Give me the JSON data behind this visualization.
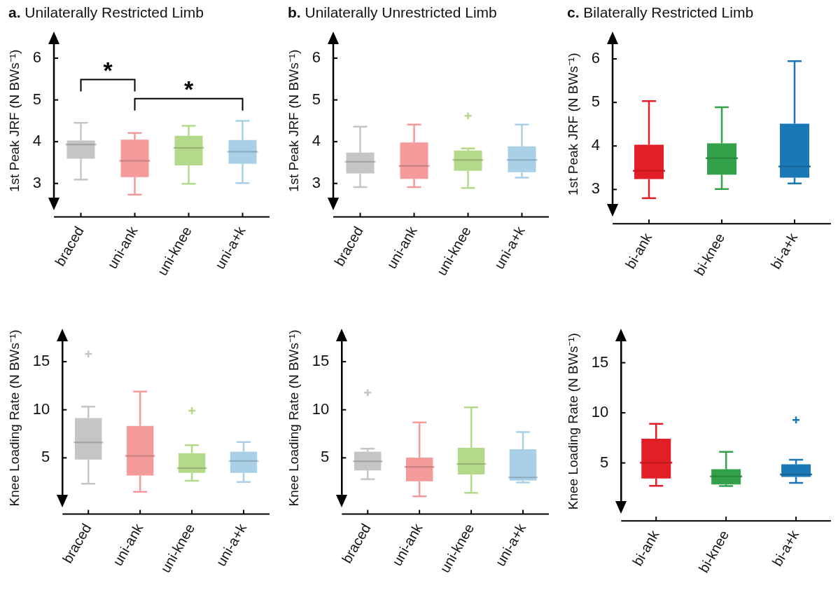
{
  "chart_data": [
    {
      "type": "box",
      "title": "a. Unilaterally Restricted Limb",
      "ylabel": "1st Peak JRF (N BWs⁻¹)",
      "categories": [
        "braced",
        "uni-ank",
        "uni-knee",
        "uni-a+k"
      ],
      "colors": [
        "#c4c5c7",
        "#f49a9a",
        "#b5d98a",
        "#a9d0e6"
      ],
      "ylim": [
        2.6,
        6.4
      ],
      "yticks": [
        3,
        4,
        5,
        6
      ],
      "boxes": [
        {
          "low": 3.09,
          "q1": 3.59,
          "median": 3.93,
          "q3": 4.03,
          "high": 4.45
        },
        {
          "low": 2.73,
          "q1": 3.15,
          "median": 3.54,
          "q3": 4.05,
          "high": 4.21
        },
        {
          "low": 2.99,
          "q1": 3.43,
          "median": 3.85,
          "q3": 4.14,
          "high": 4.38
        },
        {
          "low": 3.01,
          "q1": 3.47,
          "median": 3.76,
          "q3": 4.04,
          "high": 4.5
        }
      ],
      "annotations": [
        "*",
        "*"
      ]
    },
    {
      "type": "box",
      "title": "b. Unilaterally Unrestricted Limb",
      "ylabel": "1st Peak JRF (N BWs⁻¹)",
      "categories": [
        "braced",
        "uni-ank",
        "uni-knee",
        "uni-a+k"
      ],
      "colors": [
        "#c4c5c7",
        "#f49a9a",
        "#b5d98a",
        "#a9d0e6"
      ],
      "ylim": [
        2.6,
        6.4
      ],
      "yticks": [
        3,
        4,
        5,
        6
      ],
      "boxes": [
        {
          "low": 2.91,
          "q1": 3.24,
          "median": 3.52,
          "q3": 3.74,
          "high": 4.36
        },
        {
          "low": 2.91,
          "q1": 3.11,
          "median": 3.42,
          "q3": 3.98,
          "high": 4.41
        },
        {
          "low": 2.89,
          "q1": 3.3,
          "median": 3.56,
          "q3": 3.79,
          "high": 3.84,
          "outliers": [
            4.62
          ]
        },
        {
          "low": 3.14,
          "q1": 3.27,
          "median": 3.56,
          "q3": 3.89,
          "high": 4.41
        }
      ]
    },
    {
      "type": "box",
      "title": "c. Bilaterally Restricted Limb",
      "ylabel": "1st Peak JRF (N BWs⁻¹)",
      "categories": [
        "bi-ank",
        "bi-knee",
        "bi-a+k"
      ],
      "colors": [
        "#e31e26",
        "#33a14a",
        "#1b78b6"
      ],
      "ylim": [
        2.6,
        6.4
      ],
      "yticks": [
        3,
        4,
        5,
        6
      ],
      "boxes": [
        {
          "low": 2.8,
          "q1": 3.24,
          "median": 3.43,
          "q3": 4.03,
          "high": 5.03
        },
        {
          "low": 3.01,
          "q1": 3.34,
          "median": 3.72,
          "q3": 4.06,
          "high": 4.89
        },
        {
          "low": 3.14,
          "q1": 3.27,
          "median": 3.53,
          "q3": 4.51,
          "high": 5.95
        }
      ]
    },
    {
      "type": "box",
      "ylabel": "Knee Loading Rate (N BWs⁻¹)",
      "categories": [
        "braced",
        "uni-ank",
        "uni-knee",
        "uni-a+k"
      ],
      "colors": [
        "#c4c5c7",
        "#f49a9a",
        "#b5d98a",
        "#a9d0e6"
      ],
      "ylim": [
        0.9,
        17.4
      ],
      "yticks": [
        5,
        10,
        15
      ],
      "boxes": [
        {
          "low": 2.3,
          "q1": 4.83,
          "median": 6.61,
          "q3": 9.15,
          "high": 10.33,
          "outliers": [
            15.81
          ]
        },
        {
          "low": 1.47,
          "q1": 3.16,
          "median": 5.21,
          "q3": 8.32,
          "high": 11.9
        },
        {
          "low": 2.62,
          "q1": 3.44,
          "median": 3.93,
          "q3": 5.47,
          "high": 6.31,
          "outliers": [
            9.9
          ]
        },
        {
          "low": 2.49,
          "q1": 3.44,
          "median": 4.68,
          "q3": 5.64,
          "high": 6.65
        }
      ]
    },
    {
      "type": "box",
      "ylabel": "Knee Loading Rate (N BWs⁻¹)",
      "categories": [
        "braced",
        "uni-ank",
        "uni-knee",
        "uni-a+k"
      ],
      "colors": [
        "#c4c5c7",
        "#f49a9a",
        "#b5d98a",
        "#a9d0e6"
      ],
      "ylim": [
        0.9,
        17.4
      ],
      "yticks": [
        5,
        10,
        15
      ],
      "boxes": [
        {
          "low": 2.79,
          "q1": 3.7,
          "median": 4.64,
          "q3": 5.64,
          "high": 5.96,
          "outliers": [
            11.79
          ]
        },
        {
          "low": 1.0,
          "q1": 2.57,
          "median": 4.06,
          "q3": 5.02,
          "high": 8.68
        },
        {
          "low": 1.36,
          "q1": 3.28,
          "median": 4.36,
          "q3": 6.04,
          "high": 10.26
        },
        {
          "low": 2.43,
          "q1": 2.64,
          "median": 2.96,
          "q3": 5.89,
          "high": 7.68
        }
      ]
    },
    {
      "type": "box",
      "ylabel": "Knee Loading Rate (N BWs⁻¹)",
      "categories": [
        "bi-ank",
        "bi-knee",
        "bi-a+k"
      ],
      "colors": [
        "#e31e26",
        "#33a14a",
        "#1b78b6"
      ],
      "ylim": [
        0.9,
        17.4
      ],
      "yticks": [
        5,
        10,
        15
      ],
      "boxes": [
        {
          "low": 2.71,
          "q1": 3.44,
          "median": 5.02,
          "q3": 7.41,
          "high": 8.91
        },
        {
          "low": 2.69,
          "q1": 2.86,
          "median": 3.65,
          "q3": 4.38,
          "high": 6.11
        },
        {
          "low": 3.01,
          "q1": 3.61,
          "median": 3.85,
          "q3": 4.87,
          "high": 5.32,
          "outliers": [
            9.29
          ]
        }
      ]
    }
  ]
}
